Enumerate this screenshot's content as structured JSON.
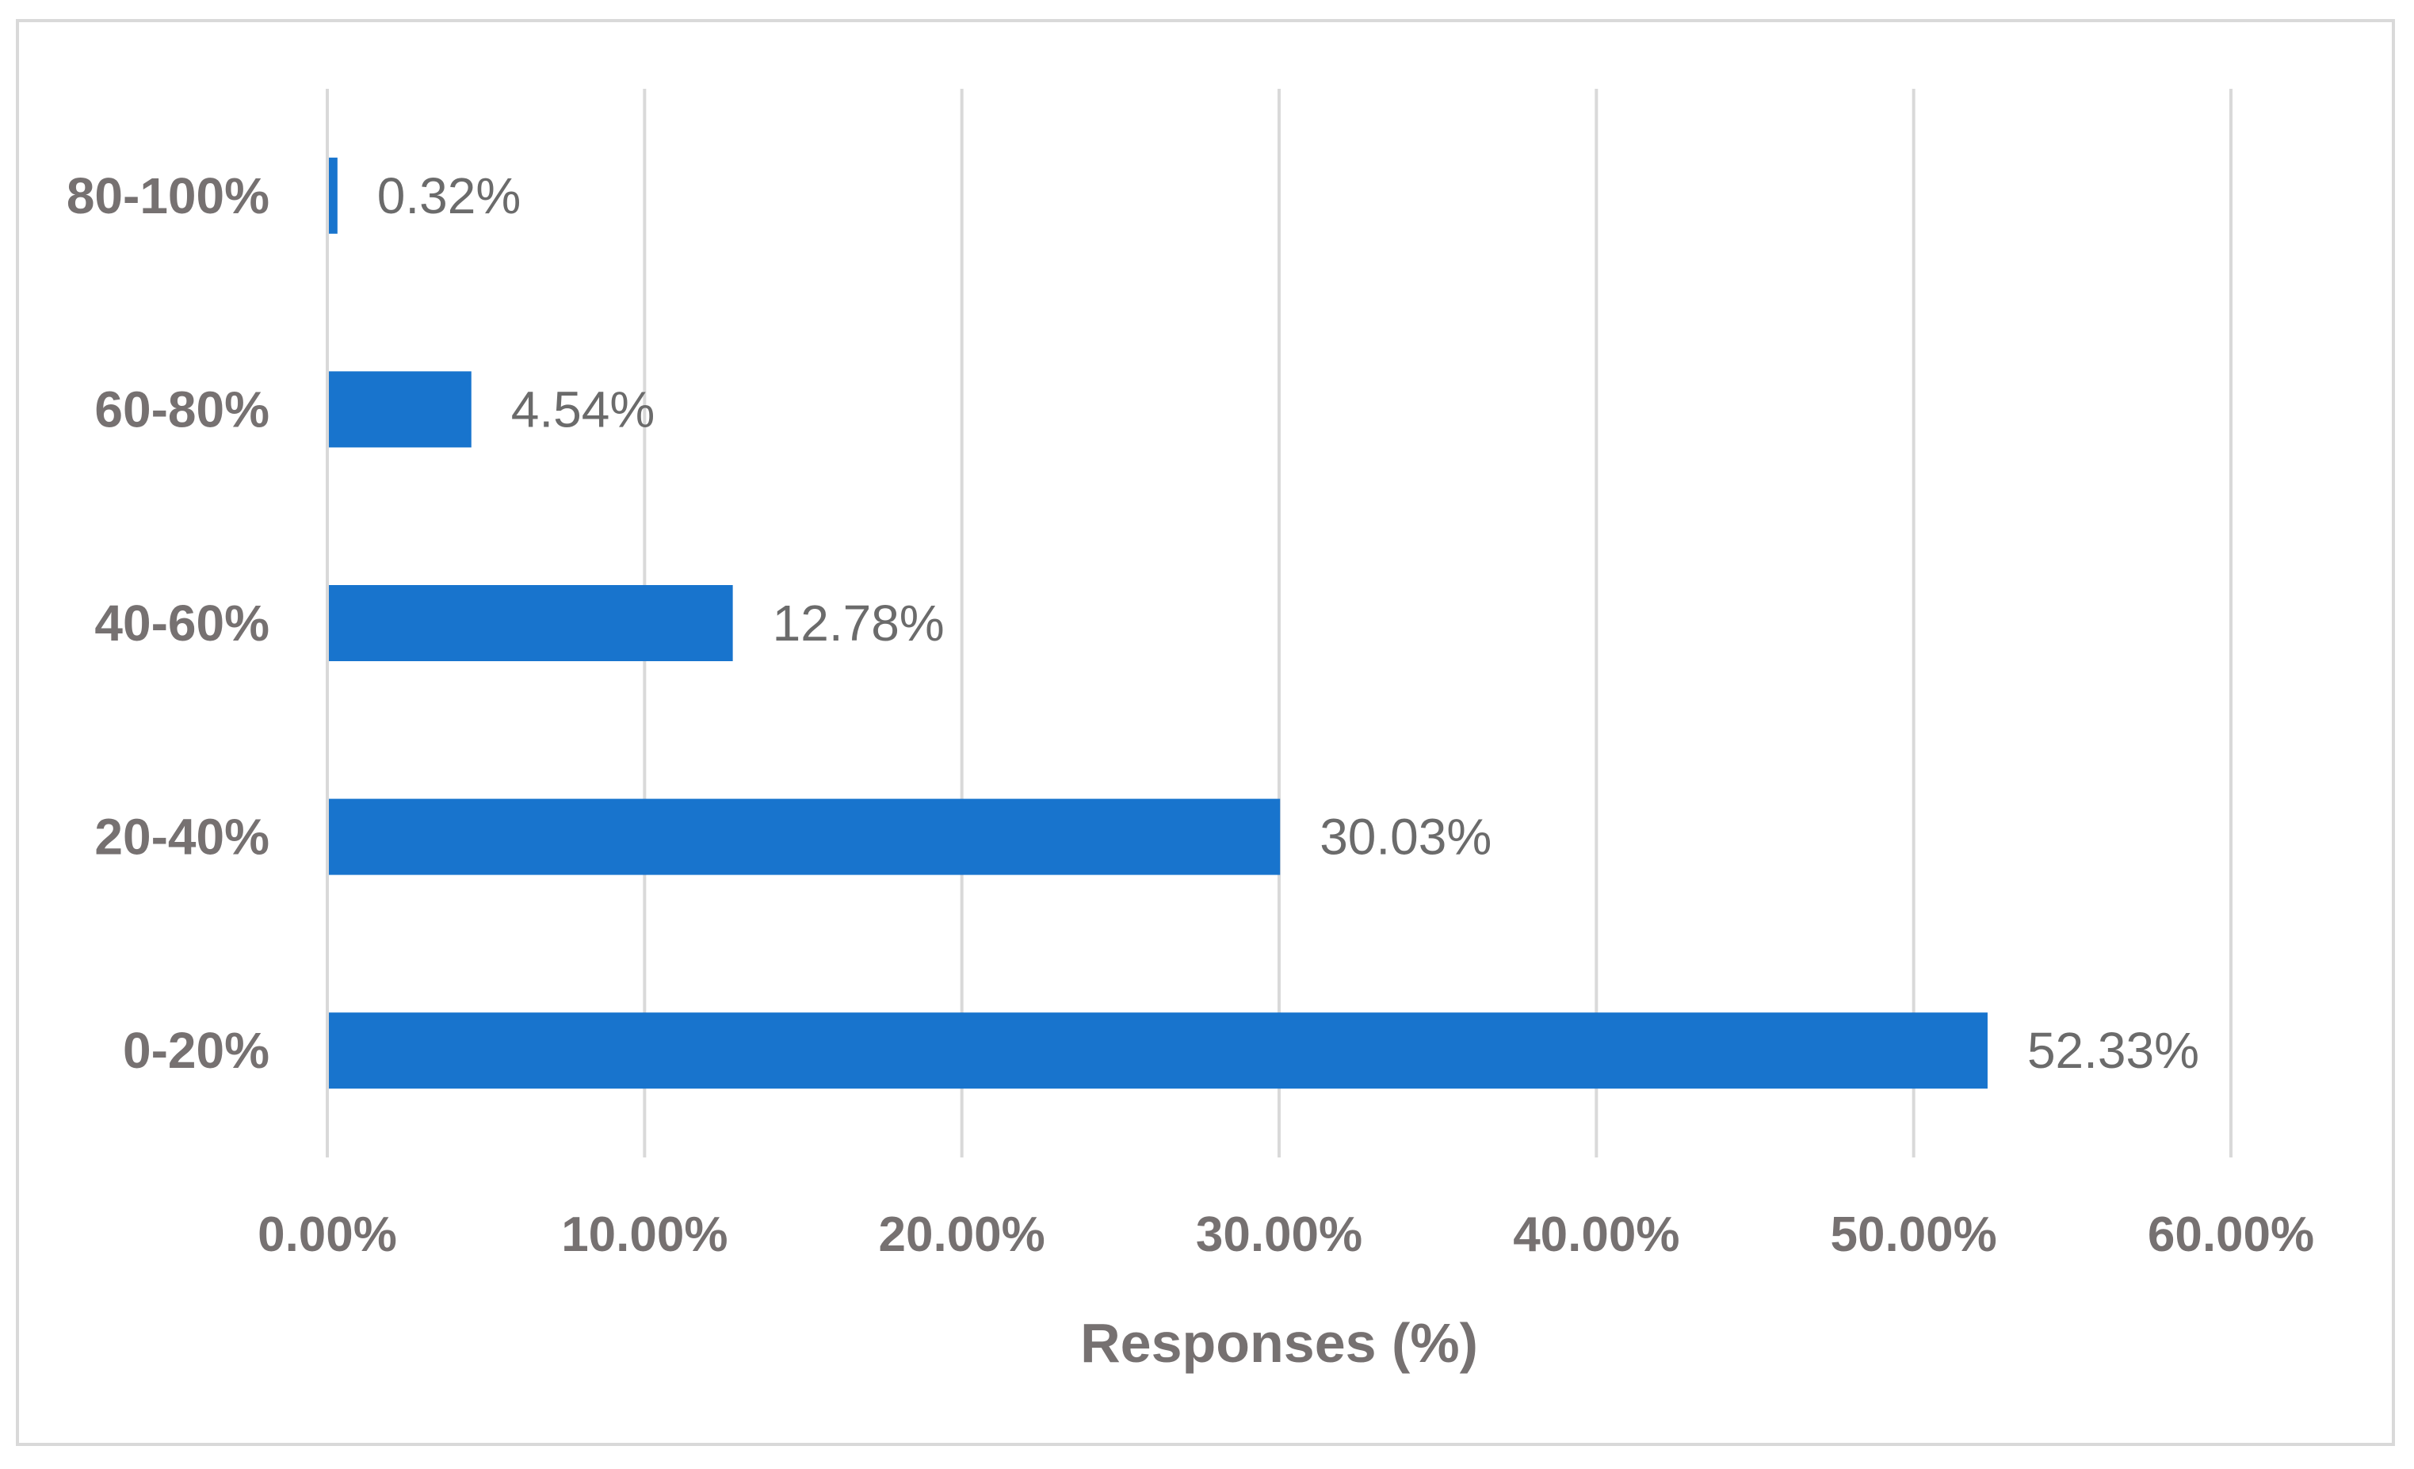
{
  "chart_data": {
    "type": "bar",
    "orientation": "horizontal",
    "categories": [
      "0-20%",
      "20-40%",
      "40-60%",
      "60-80%",
      "80-100%"
    ],
    "values": [
      52.33,
      30.03,
      12.78,
      4.54,
      0.32
    ],
    "data_labels": [
      "52.33%",
      "30.03%",
      "12.78%",
      "4.54%",
      "0.32%"
    ],
    "xlabel": "Responses (%)",
    "ylabel": "",
    "xlim": [
      0,
      60
    ],
    "x_ticks": [
      0,
      10,
      20,
      30,
      40,
      50,
      60
    ],
    "x_tick_labels": [
      "0.00%",
      "10.00%",
      "20.00%",
      "30.00%",
      "40.00%",
      "50.00%",
      "60.00%"
    ],
    "grid": "vertical",
    "legend": "none",
    "colors": {
      "bar": "#1874cd",
      "grid": "#d9d9d9",
      "text": "#767171",
      "border": "#d9d9d9"
    }
  }
}
